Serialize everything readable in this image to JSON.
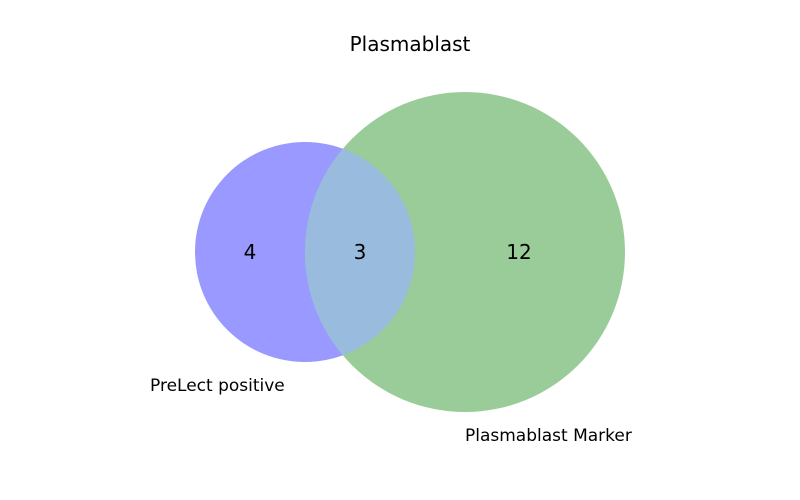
{
  "venn": {
    "title": "Plasmablast",
    "sets": [
      {
        "name": "PreLect positive",
        "color": "#9999ff"
      },
      {
        "name": "Plasmablast Marker",
        "color": "#99cc99"
      }
    ],
    "counts": {
      "left_only": "4",
      "intersection": "3",
      "right_only": "12"
    },
    "intersection_color": "#99bbdd"
  }
}
